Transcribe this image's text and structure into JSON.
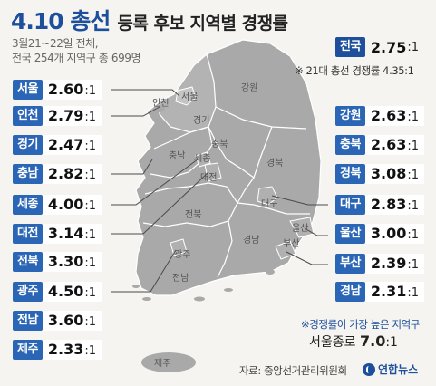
{
  "title": {
    "main": "4.10 총선",
    "rest": "등록 후보 지역별 경쟁률"
  },
  "subtitle": {
    "line1": "3월21~22일 전체,",
    "line2": "전국 254개 지역구 총 699명"
  },
  "national": {
    "label": "전국",
    "value": "2.75",
    "unit": ":1"
  },
  "note_21st": "※ 21대 총선 경쟁률 4.35:1",
  "left_regions": [
    {
      "label": "서울",
      "value": "2.60",
      "unit": ":1"
    },
    {
      "label": "인천",
      "value": "2.79",
      "unit": ":1"
    },
    {
      "label": "경기",
      "value": "2.47",
      "unit": ":1"
    },
    {
      "label": "충남",
      "value": "2.82",
      "unit": ":1"
    },
    {
      "label": "세종",
      "value": "4.00",
      "unit": ":1"
    },
    {
      "label": "대전",
      "value": "3.14",
      "unit": ":1"
    },
    {
      "label": "전북",
      "value": "3.30",
      "unit": ":1"
    },
    {
      "label": "광주",
      "value": "4.50",
      "unit": ":1"
    },
    {
      "label": "전남",
      "value": "3.60",
      "unit": ":1"
    },
    {
      "label": "제주",
      "value": "2.33",
      "unit": ":1"
    }
  ],
  "right_regions": [
    {
      "label": "강원",
      "value": "2.63",
      "unit": ":1"
    },
    {
      "label": "충북",
      "value": "2.63",
      "unit": ":1"
    },
    {
      "label": "경북",
      "value": "3.08",
      "unit": ":1"
    },
    {
      "label": "대구",
      "value": "2.83",
      "unit": ":1"
    },
    {
      "label": "울산",
      "value": "3.00",
      "unit": ":1"
    },
    {
      "label": "부산",
      "value": "2.39",
      "unit": ":1"
    },
    {
      "label": "경남",
      "value": "2.31",
      "unit": ":1"
    }
  ],
  "map_labels": {
    "seoul": "서울",
    "incheon": "인천",
    "gyeonggi": "경기",
    "gangwon": "강원",
    "chungbuk": "충북",
    "chungnam": "충남",
    "sejong": "세종",
    "daejeon": "대전",
    "gyeongbuk": "경북",
    "daegu": "대구",
    "jeonbuk": "전북",
    "ulsan": "울산",
    "gwangju": "광주",
    "gyeongnam": "경남",
    "busan": "부산",
    "jeonnam": "전남",
    "jeju": "제주"
  },
  "highest": {
    "note": "※경쟁률이 가장 높은 지역구",
    "district": "서울종로",
    "value": "7.0",
    "unit": ":1"
  },
  "source": "자료: 중앙선거관리위원회",
  "logo": "연합뉴스",
  "colors": {
    "accent": "#2a66b5",
    "title": "#1d4f9c",
    "map_fill": "#a9a9a9",
    "map_border": "#ffffff"
  }
}
